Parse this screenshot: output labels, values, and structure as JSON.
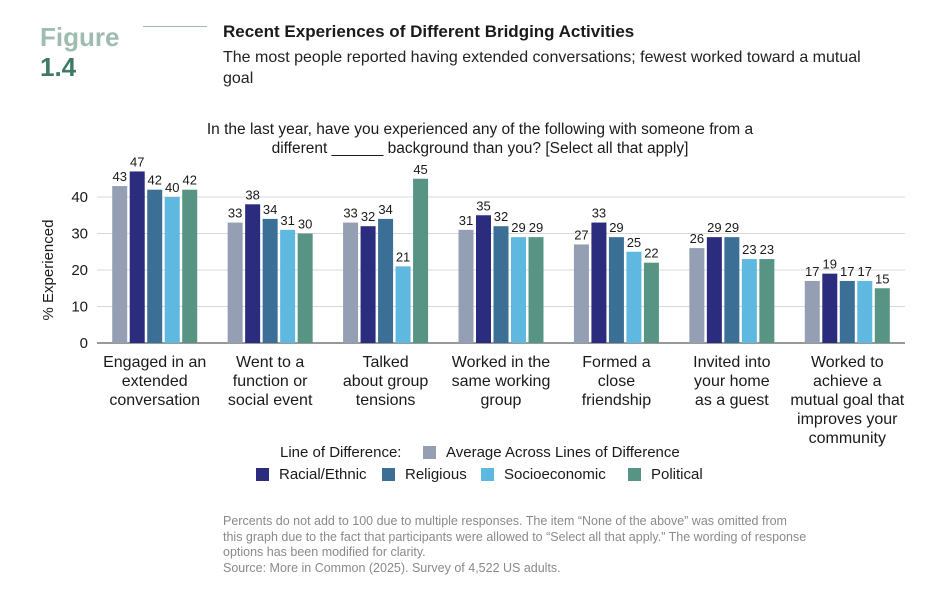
{
  "figure": {
    "word": "Figure",
    "number": "1.4"
  },
  "title": "Recent Experiences of Different Bridging Activities",
  "subtitle": "The most people reported having extended conversations; fewest worked toward a mutual goal",
  "question": "In the last year, have you experienced any of the following with someone from a\ndifferent ______ background than you? [Select all that apply]",
  "footnote": "Percents do not add to 100 due to multiple responses. The item “None of the above” was omitted from\nthis graph due to the fact that participants were allowed to “Select all that apply.” The wording of response\noptions has been modified for clarity.\nSource: More in Common (2025). Survey of 4,522 US adults.",
  "chart_data": {
    "type": "bar",
    "ylabel": "% Experienced",
    "yticks": [
      0,
      10,
      20,
      30,
      40
    ],
    "ylim": [
      0,
      50
    ],
    "grid": true,
    "legend_title": "Line of Difference:",
    "legend_position": "bottom",
    "categories": [
      "Engaged in an\nextended\nconversation",
      "Went to a\nfunction or\nsocial event",
      "Talked\nabout group\ntensions",
      "Worked in the\nsame working\ngroup",
      "Formed a\nclose\nfriendship",
      "Invited into\nyour home\nas a guest",
      "Worked to\nachieve a\nmutual goal that\nimproves your\ncommunity"
    ],
    "series": [
      {
        "name": "Average Across Lines of Difference",
        "color": "#959fb4",
        "values": [
          43,
          33,
          33,
          31,
          27,
          26,
          17
        ]
      },
      {
        "name": "Racial/Ethnic",
        "color": "#2c2c7e",
        "values": [
          47,
          38,
          32,
          35,
          33,
          29,
          19
        ]
      },
      {
        "name": "Religious",
        "color": "#3b6f96",
        "values": [
          42,
          34,
          34,
          32,
          29,
          29,
          17
        ]
      },
      {
        "name": "Socioeconomic",
        "color": "#5fb8e0",
        "values": [
          40,
          31,
          21,
          29,
          25,
          23,
          17
        ]
      },
      {
        "name": "Political",
        "color": "#579483",
        "values": [
          42,
          30,
          45,
          29,
          22,
          23,
          15
        ]
      }
    ]
  }
}
